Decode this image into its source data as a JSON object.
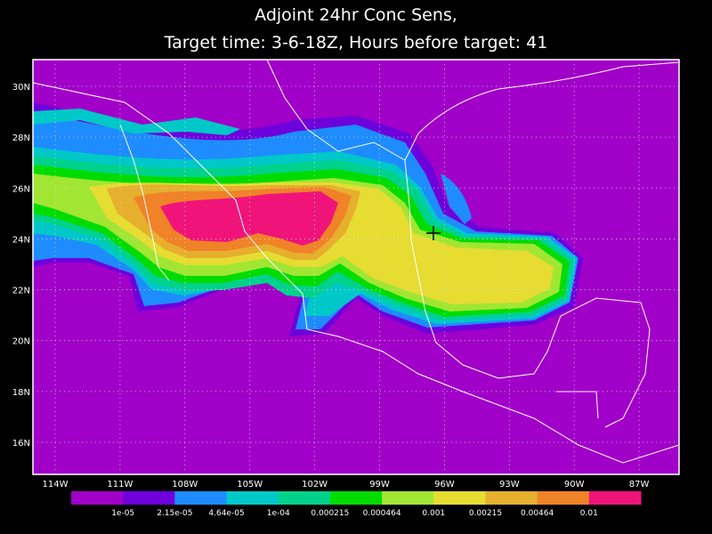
{
  "title": {
    "line1": "Adjoint 24hr Conc Sens,",
    "line2": "Target time: 3-6-18Z, Hours before target: 41"
  },
  "map": {
    "lat_ticks": [
      {
        "value": 30,
        "label": "30N"
      },
      {
        "value": 28,
        "label": "28N"
      },
      {
        "value": 26,
        "label": "26N"
      },
      {
        "value": 24,
        "label": "24N"
      },
      {
        "value": 22,
        "label": "22N"
      },
      {
        "value": 20,
        "label": "20N"
      },
      {
        "value": 18,
        "label": "18N"
      },
      {
        "value": 16,
        "label": "16N"
      }
    ],
    "lon_ticks": [
      {
        "value": -114,
        "label": "114W"
      },
      {
        "value": -111,
        "label": "111W"
      },
      {
        "value": -108,
        "label": "108W"
      },
      {
        "value": -105,
        "label": "105W"
      },
      {
        "value": -102,
        "label": "102W"
      },
      {
        "value": -99,
        "label": "99W"
      },
      {
        "value": -96,
        "label": "96W"
      },
      {
        "value": -93,
        "label": "93W"
      },
      {
        "value": -90,
        "label": "90W"
      },
      {
        "value": -87,
        "label": "87W"
      }
    ]
  },
  "colorbar": {
    "colors": [
      "#a000c8",
      "#6e00dc",
      "#1e8cff",
      "#00c8c8",
      "#00d28c",
      "#00dc00",
      "#a0e632",
      "#e6dc32",
      "#e6af2d",
      "#f08228",
      "#f0147a"
    ],
    "labels": [
      "1e-05",
      "2.15e-05",
      "4.64e-05",
      "1e-04",
      "0.000215",
      "0.000464",
      "0.001",
      "0.00215",
      "0.00464",
      "0.01"
    ]
  }
}
